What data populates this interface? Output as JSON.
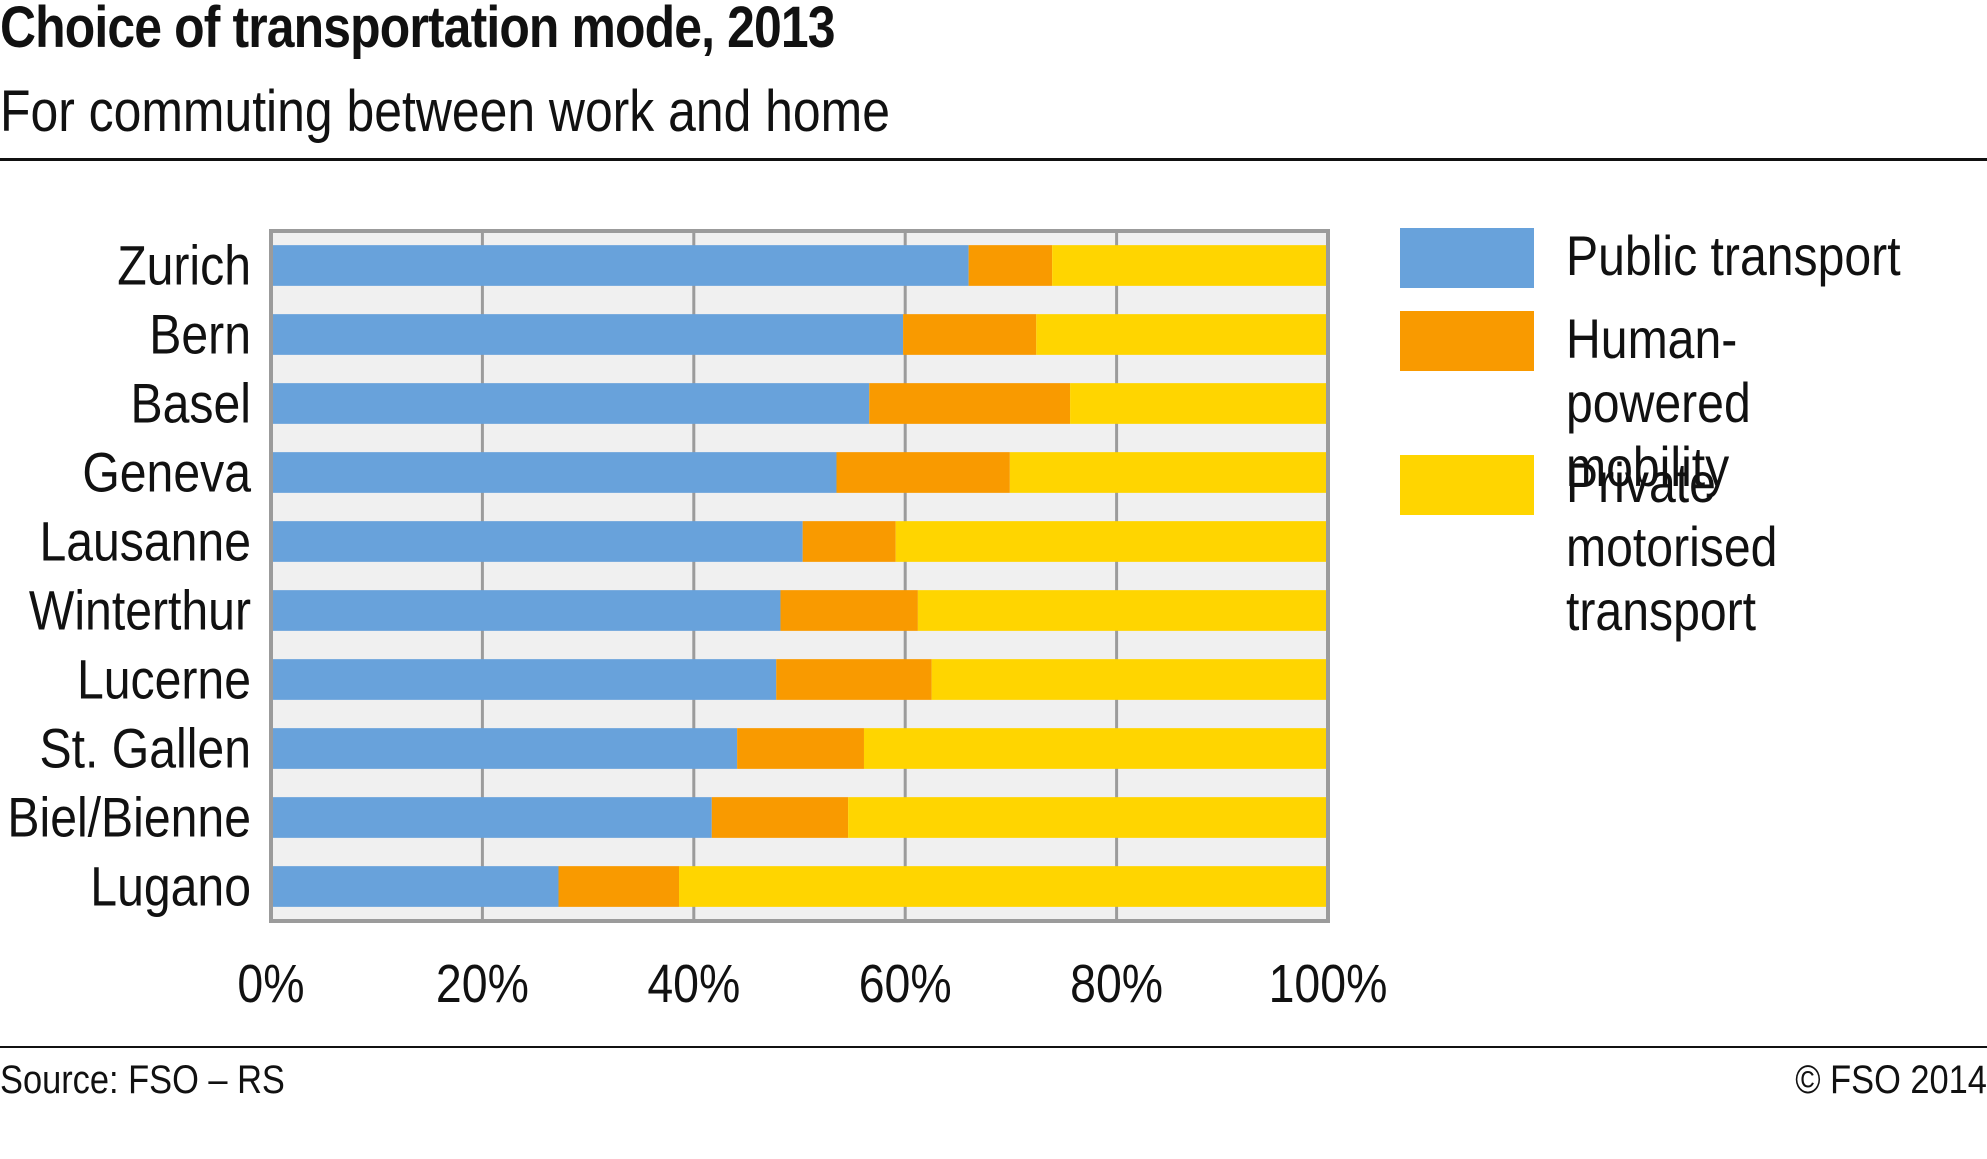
{
  "header": {
    "title": "Choice of transportation mode, 2013",
    "subtitle": "For commuting between work and home"
  },
  "footer": {
    "source": "Source: FSO – RS",
    "copyright": "© FSO 2014"
  },
  "chart_data": {
    "type": "bar",
    "orientation": "horizontal",
    "stacked": true,
    "title": "Choice of transportation mode, 2013",
    "subtitle": "For commuting between work and home",
    "xlabel": "",
    "ylabel": "",
    "xlim": [
      0,
      100
    ],
    "x_ticks": [
      "0%",
      "20%",
      "40%",
      "60%",
      "80%",
      "100%"
    ],
    "grid": true,
    "legend_position": "right",
    "categories": [
      "Zurich",
      "Bern",
      "Basel",
      "Geneva",
      "Lausanne",
      "Winterthur",
      "Lucerne",
      "St. Gallen",
      "Biel/Bienne",
      "Lugano"
    ],
    "series": [
      {
        "name": "Public transport",
        "color": "#68A2DB",
        "values": [
          66.0,
          59.8,
          56.6,
          53.5,
          50.3,
          48.2,
          47.8,
          44.1,
          41.7,
          27.2
        ]
      },
      {
        "name": "Human-powered mobility",
        "color": "#F99A00",
        "values": [
          7.9,
          12.6,
          19.0,
          16.4,
          8.8,
          13.0,
          14.7,
          12.0,
          12.9,
          11.4
        ]
      },
      {
        "name": "Private motorised transport",
        "color": "#FFD500",
        "values": [
          26.1,
          27.6,
          24.4,
          30.1,
          40.9,
          38.8,
          37.5,
          43.9,
          45.4,
          61.4
        ]
      }
    ]
  }
}
